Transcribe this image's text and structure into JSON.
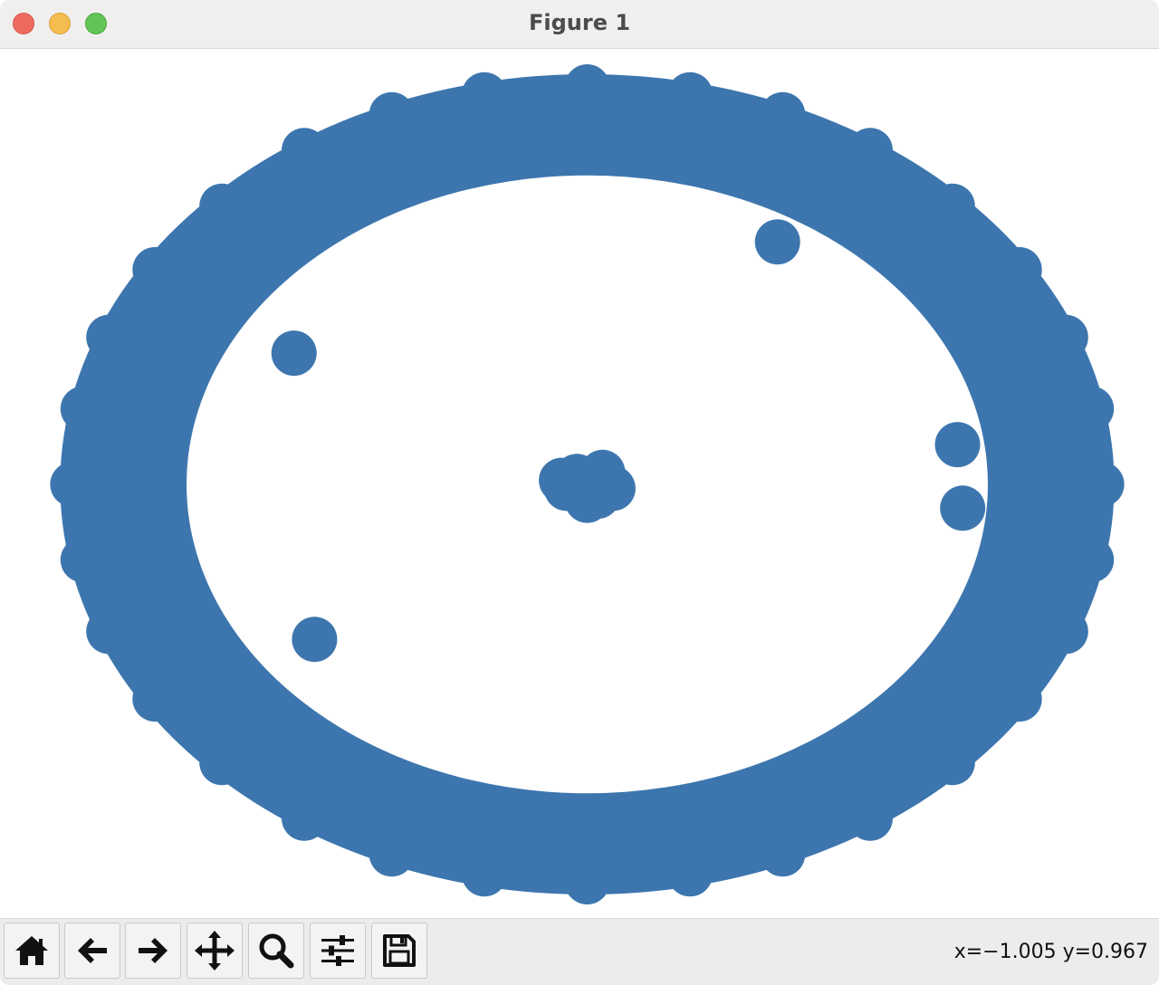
{
  "window": {
    "title": "Figure 1"
  },
  "toolbar": {
    "buttons": [
      {
        "name": "home",
        "icon": "home-icon"
      },
      {
        "name": "back",
        "icon": "arrow-left-icon"
      },
      {
        "name": "forward",
        "icon": "arrow-right-icon"
      },
      {
        "name": "pan",
        "icon": "move-icon"
      },
      {
        "name": "zoom",
        "icon": "magnifier-icon"
      },
      {
        "name": "configure-subplots",
        "icon": "sliders-icon"
      },
      {
        "name": "save",
        "icon": "floppy-disk-icon"
      }
    ],
    "coordinates": "x=−1.005 y=0.967"
  },
  "colors": {
    "marker": "#3d76ae",
    "titlebar": "#f0efee",
    "toolbar": "#ececec"
  },
  "chart_data": {
    "type": "scatter",
    "title": "",
    "xlabel": "",
    "ylabel": "",
    "axes_visible": false,
    "grid": false,
    "xlim": [
      -1.05,
      1.05
    ],
    "ylim": [
      -1.05,
      1.05
    ],
    "marker_color": "#3d76ae",
    "series": [
      {
        "description": "dense outer ring",
        "points": [
          [
            1.0,
            0.0
          ],
          [
            0.98,
            0.19
          ],
          [
            0.93,
            0.37
          ],
          [
            0.84,
            0.54
          ],
          [
            0.71,
            0.7
          ],
          [
            0.55,
            0.84
          ],
          [
            0.38,
            0.93
          ],
          [
            0.2,
            0.98
          ],
          [
            0.0,
            1.0
          ],
          [
            -0.2,
            0.98
          ],
          [
            -0.38,
            0.93
          ],
          [
            -0.55,
            0.84
          ],
          [
            -0.71,
            0.7
          ],
          [
            -0.84,
            0.54
          ],
          [
            -0.93,
            0.37
          ],
          [
            -0.98,
            0.19
          ],
          [
            -1.0,
            0.0
          ],
          [
            -0.98,
            -0.19
          ],
          [
            -0.93,
            -0.37
          ],
          [
            -0.84,
            -0.54
          ],
          [
            -0.71,
            -0.7
          ],
          [
            -0.55,
            -0.84
          ],
          [
            -0.38,
            -0.93
          ],
          [
            -0.2,
            -0.98
          ],
          [
            0.0,
            -1.0
          ],
          [
            0.2,
            -0.98
          ],
          [
            0.38,
            -0.93
          ],
          [
            0.55,
            -0.84
          ],
          [
            0.71,
            -0.7
          ],
          [
            0.84,
            -0.54
          ],
          [
            0.93,
            -0.37
          ],
          [
            0.98,
            -0.19
          ],
          [
            0.85,
            0.0
          ],
          [
            0.83,
            0.17
          ],
          [
            0.79,
            0.32
          ],
          [
            0.71,
            0.46
          ],
          [
            0.6,
            0.6
          ],
          [
            0.46,
            0.71
          ],
          [
            0.32,
            0.79
          ],
          [
            0.17,
            0.83
          ],
          [
            0.0,
            0.85
          ],
          [
            -0.17,
            0.83
          ],
          [
            -0.32,
            0.79
          ],
          [
            -0.46,
            0.71
          ],
          [
            -0.6,
            0.6
          ],
          [
            -0.71,
            0.46
          ],
          [
            -0.79,
            0.32
          ],
          [
            -0.83,
            0.17
          ],
          [
            -0.85,
            0.0
          ],
          [
            -0.83,
            -0.17
          ],
          [
            -0.79,
            -0.32
          ],
          [
            -0.71,
            -0.46
          ],
          [
            -0.6,
            -0.6
          ],
          [
            -0.46,
            -0.71
          ],
          [
            -0.32,
            -0.79
          ],
          [
            -0.17,
            -0.83
          ],
          [
            0.0,
            -0.85
          ],
          [
            0.17,
            -0.83
          ],
          [
            0.32,
            -0.79
          ],
          [
            0.46,
            -0.71
          ],
          [
            0.6,
            -0.6
          ],
          [
            0.71,
            -0.46
          ],
          [
            0.79,
            -0.32
          ],
          [
            0.83,
            -0.17
          ],
          [
            0.92,
            0.1
          ],
          [
            0.88,
            0.28
          ],
          [
            0.78,
            0.45
          ],
          [
            0.63,
            0.62
          ],
          [
            0.47,
            0.77
          ],
          [
            0.29,
            0.88
          ],
          [
            0.1,
            0.93
          ],
          [
            -0.1,
            0.93
          ],
          [
            -0.29,
            0.88
          ],
          [
            -0.47,
            0.77
          ],
          [
            -0.63,
            0.62
          ],
          [
            -0.78,
            0.45
          ],
          [
            -0.88,
            0.28
          ],
          [
            -0.92,
            0.1
          ],
          [
            -0.92,
            -0.1
          ],
          [
            -0.88,
            -0.28
          ],
          [
            -0.78,
            -0.45
          ],
          [
            -0.63,
            -0.62
          ],
          [
            -0.47,
            -0.77
          ],
          [
            -0.29,
            -0.88
          ],
          [
            -0.1,
            -0.93
          ],
          [
            0.1,
            -0.93
          ],
          [
            0.29,
            -0.88
          ],
          [
            0.47,
            -0.77
          ],
          [
            0.63,
            -0.62
          ],
          [
            0.78,
            -0.45
          ],
          [
            0.88,
            -0.28
          ],
          [
            0.92,
            -0.1
          ]
        ]
      },
      {
        "description": "inner cluster and outliers",
        "points": [
          [
            -0.02,
            0.02
          ],
          [
            0.03,
            0.03
          ],
          [
            0.05,
            -0.01
          ],
          [
            0.0,
            -0.04
          ],
          [
            -0.04,
            -0.01
          ],
          [
            0.02,
            -0.03
          ],
          [
            -0.05,
            0.01
          ],
          [
            0.37,
            0.61
          ],
          [
            -0.57,
            0.33
          ],
          [
            -0.53,
            -0.39
          ],
          [
            0.72,
            0.1
          ],
          [
            0.73,
            -0.06
          ]
        ]
      }
    ]
  }
}
